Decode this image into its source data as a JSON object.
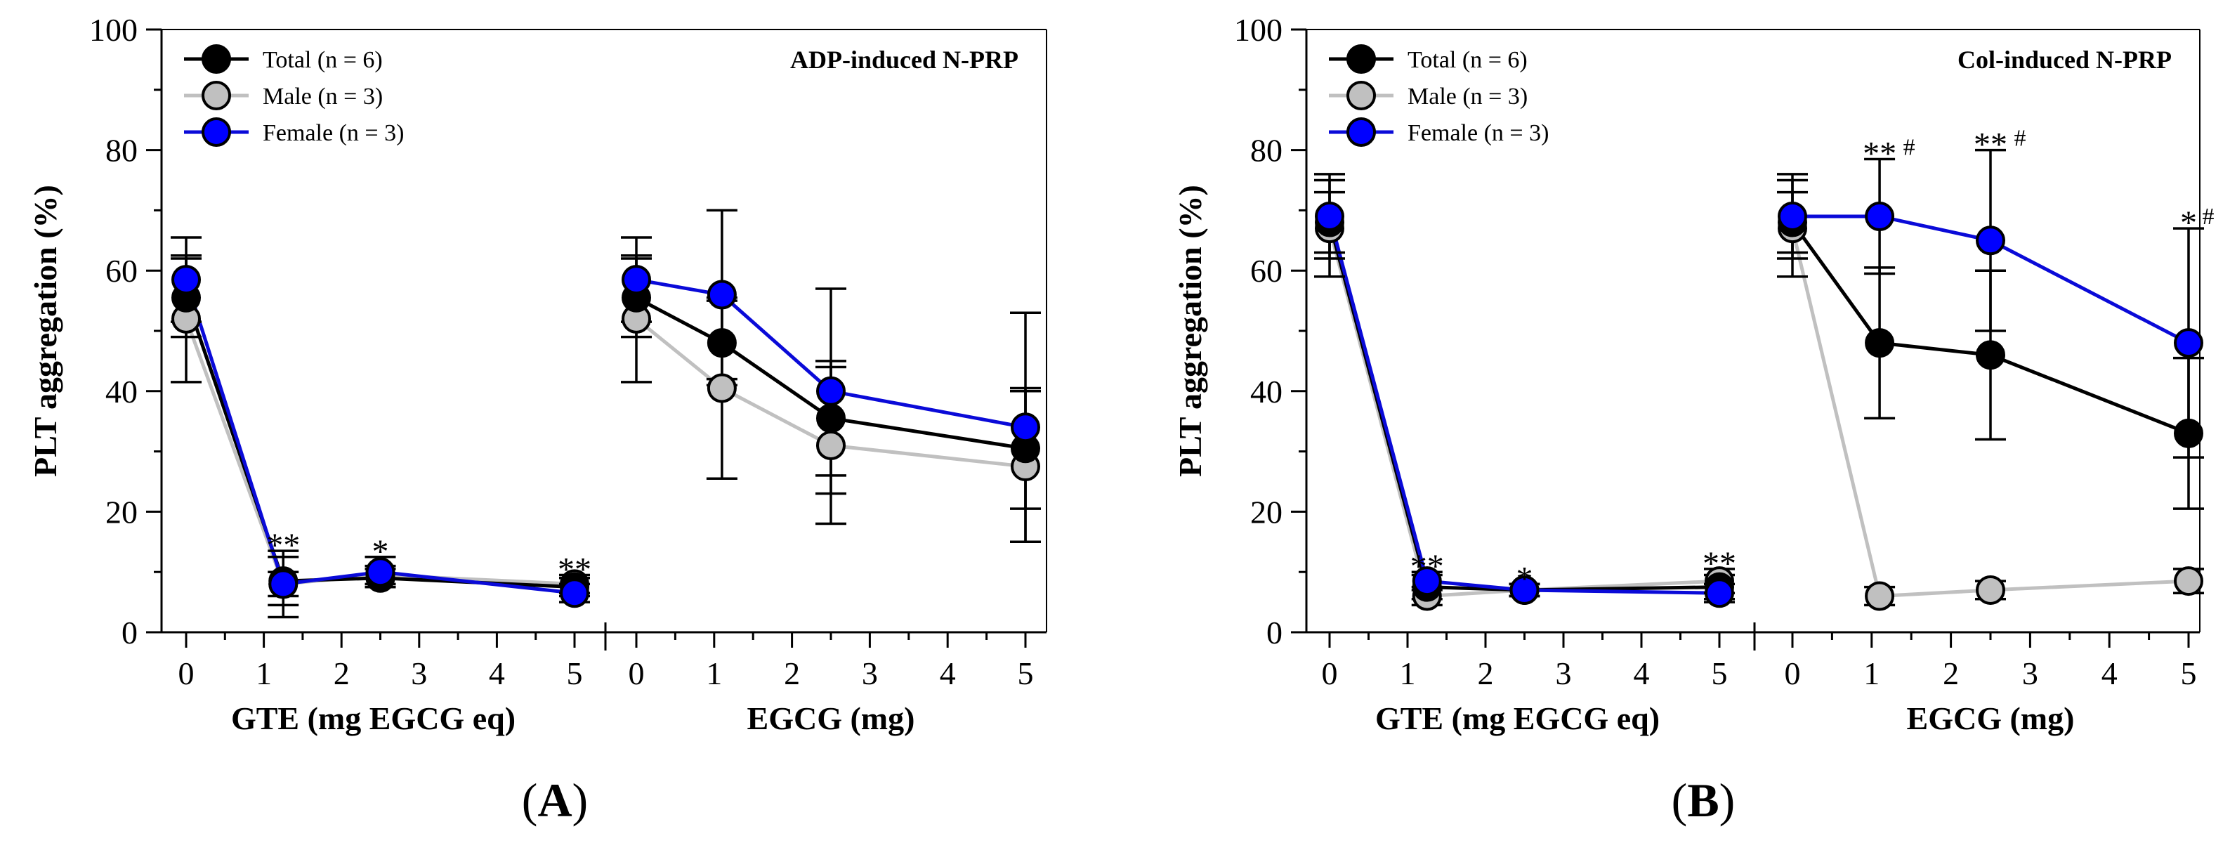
{
  "colors": {
    "total": "#000000",
    "male": "#c0c0c0",
    "female": "#0a0ad8",
    "female_fill": "#0000ff"
  },
  "chart_data": [
    {
      "type": "line",
      "panel_letter": "A",
      "title": "ADP-induced N-PRP",
      "ylabel": "PLT aggregation (%)",
      "ylim": [
        0,
        100
      ],
      "yticks": [
        "0",
        "20",
        "40",
        "60",
        "80",
        "100"
      ],
      "legend": [
        "Total (n = 6)",
        "Male (n = 3)",
        "Female (n = 3)"
      ],
      "legend_position": "top-left",
      "groups": [
        {
          "xlabel": "GTE (mg EGCG eq)",
          "xlim": [
            -0.25,
            5.25
          ],
          "xticks": [
            "0",
            "1",
            "2",
            "3",
            "4",
            "5"
          ],
          "x": [
            0,
            1.25,
            2.5,
            5
          ],
          "series": [
            {
              "name": "Total (n = 6)",
              "values": [
                55.5,
                8.5,
                9,
                7.5
              ],
              "err": [
                6.5,
                4,
                1.5,
                1.5
              ]
            },
            {
              "name": "Male (n = 3)",
              "values": [
                52,
                8,
                9.5,
                8
              ],
              "err": [
                10.5,
                5.5,
                1.5,
                1.5
              ]
            },
            {
              "name": "Female (n = 3)",
              "values": [
                58.5,
                8,
                10,
                6.5
              ],
              "err": [
                7,
                2,
                2.5,
                1.5
              ]
            }
          ],
          "annotations": [
            {
              "x": 1.25,
              "text": "**"
            },
            {
              "x": 2.5,
              "text": "*"
            },
            {
              "x": 5,
              "text": "**"
            }
          ]
        },
        {
          "xlabel": "EGCG (mg)",
          "xlim": [
            -0.25,
            5.25
          ],
          "xticks": [
            "0",
            "1",
            "2",
            "3",
            "4",
            "5"
          ],
          "x": [
            0,
            1.1,
            2.5,
            5
          ],
          "series": [
            {
              "name": "Total (n = 6)",
              "values": [
                55.5,
                48,
                35.5,
                30.5
              ],
              "err": [
                6.5,
                7,
                9.5,
                10
              ]
            },
            {
              "name": "Male (n = 3)",
              "values": [
                52,
                40.5,
                31,
                27.5
              ],
              "err": [
                10.5,
                15,
                13,
                12.5
              ]
            },
            {
              "name": "Female (n = 3)",
              "values": [
                58.5,
                56,
                40,
                34
              ],
              "err": [
                7,
                14,
                17,
                19
              ]
            }
          ],
          "annotations": []
        }
      ]
    },
    {
      "type": "line",
      "panel_letter": "B",
      "title": "Col-induced N-PRP",
      "ylabel": "PLT aggregation (%)",
      "ylim": [
        0,
        100
      ],
      "yticks": [
        "0",
        "20",
        "40",
        "60",
        "80",
        "100"
      ],
      "legend": [
        "Total (n = 6)",
        "Male (n = 3)",
        "Female (n = 3)"
      ],
      "legend_position": "top-left",
      "groups": [
        {
          "xlabel": "GTE (mg EGCG eq)",
          "xlim": [
            -0.25,
            5.25
          ],
          "xticks": [
            "0",
            "1",
            "2",
            "3",
            "4",
            "5"
          ],
          "x": [
            0,
            1.25,
            2.5,
            5
          ],
          "series": [
            {
              "name": "Total (n = 6)",
              "values": [
                68,
                7.5,
                7,
                7.5
              ],
              "err": [
                5,
                2,
                1,
                2
              ]
            },
            {
              "name": "Male (n = 3)",
              "values": [
                67,
                6,
                7,
                8.5
              ],
              "err": [
                8,
                1.5,
                1,
                2
              ]
            },
            {
              "name": "Female (n = 3)",
              "values": [
                69,
                8.5,
                7,
                6.5
              ],
              "err": [
                7,
                1.5,
                1,
                1.5
              ]
            }
          ],
          "annotations": [
            {
              "x": 1.25,
              "text": "**",
              "hash": ""
            },
            {
              "x": 2.5,
              "text": "*",
              "hash": ""
            },
            {
              "x": 5,
              "text": "**",
              "hash": ""
            }
          ]
        },
        {
          "xlabel": "EGCG (mg)",
          "xlim": [
            -0.25,
            5.25
          ],
          "xticks": [
            "0",
            "1",
            "2",
            "3",
            "4",
            "5"
          ],
          "x": [
            0,
            1.1,
            2.5,
            5
          ],
          "series": [
            {
              "name": "Total (n = 6)",
              "values": [
                68,
                48,
                46,
                33
              ],
              "err": [
                5,
                12.5,
                14,
                12.5
              ]
            },
            {
              "name": "Male (n = 3)",
              "values": [
                67,
                6,
                7,
                8.5
              ],
              "err": [
                8,
                1.5,
                1.5,
                2
              ]
            },
            {
              "name": "Female (n = 3)",
              "values": [
                69,
                69,
                65,
                48
              ],
              "err": [
                7,
                9.5,
                15,
                19
              ]
            }
          ],
          "annotations": [
            {
              "x": 1.1,
              "text": "**",
              "hash": "#"
            },
            {
              "x": 2.5,
              "text": "**",
              "hash": "#"
            },
            {
              "x": 5,
              "text": "*",
              "hash": "#"
            }
          ]
        }
      ]
    }
  ]
}
